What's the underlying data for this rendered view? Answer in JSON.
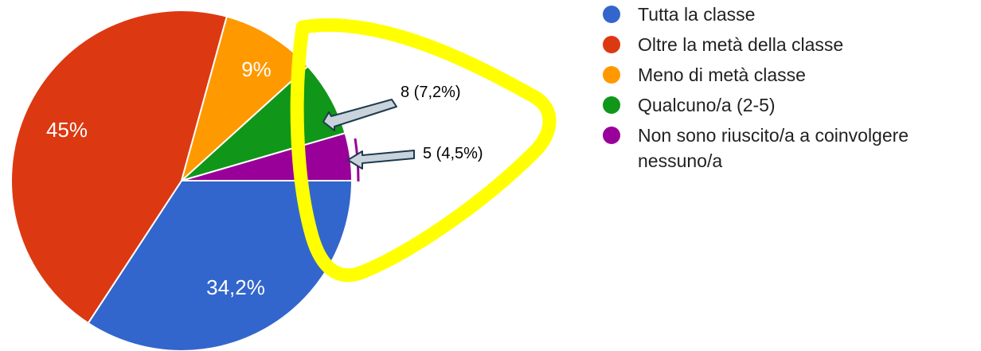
{
  "chart_data": {
    "type": "pie",
    "categories": [
      "Tutta la classe",
      "Oltre la metà della classe",
      "Meno di metà classe",
      "Qualcuno/a (2-5)",
      "Non sono riuscito/a a coinvolgere nessuno/a"
    ],
    "values": [
      34.2,
      45,
      9,
      7.2,
      4.5
    ],
    "counts": [
      null,
      null,
      null,
      8,
      5
    ],
    "colors": [
      "#3366cc",
      "#dc3912",
      "#ff9900",
      "#109618",
      "#990099"
    ],
    "slice_labels": [
      "34,2%",
      "45%",
      "9%",
      "",
      ""
    ],
    "callouts": [
      {
        "category": "Qualcuno/a (2-5)",
        "text": "8 (7,2%)"
      },
      {
        "category": "Non sono riuscito/a a coinvolgere nessuno/a",
        "text": "5 (4,5%)"
      }
    ],
    "legend": {
      "position": "right",
      "items": [
        {
          "label": "Tutta la classe",
          "color": "#3366cc"
        },
        {
          "label": "Oltre la metà della classe",
          "color": "#dc3912"
        },
        {
          "label": "Meno di metà classe",
          "color": "#ff9900"
        },
        {
          "label": "Qualcuno/a (2-5)",
          "color": "#109618"
        },
        {
          "label": "Non sono riuscito/a a coinvolgere nessuno/a",
          "color": "#990099"
        }
      ]
    },
    "annotations": {
      "highlight_color": "#ffff00",
      "arrow_color": "#c8d3db",
      "arrow_stroke": "#1f3a4d",
      "marker_color": "#990099"
    }
  }
}
